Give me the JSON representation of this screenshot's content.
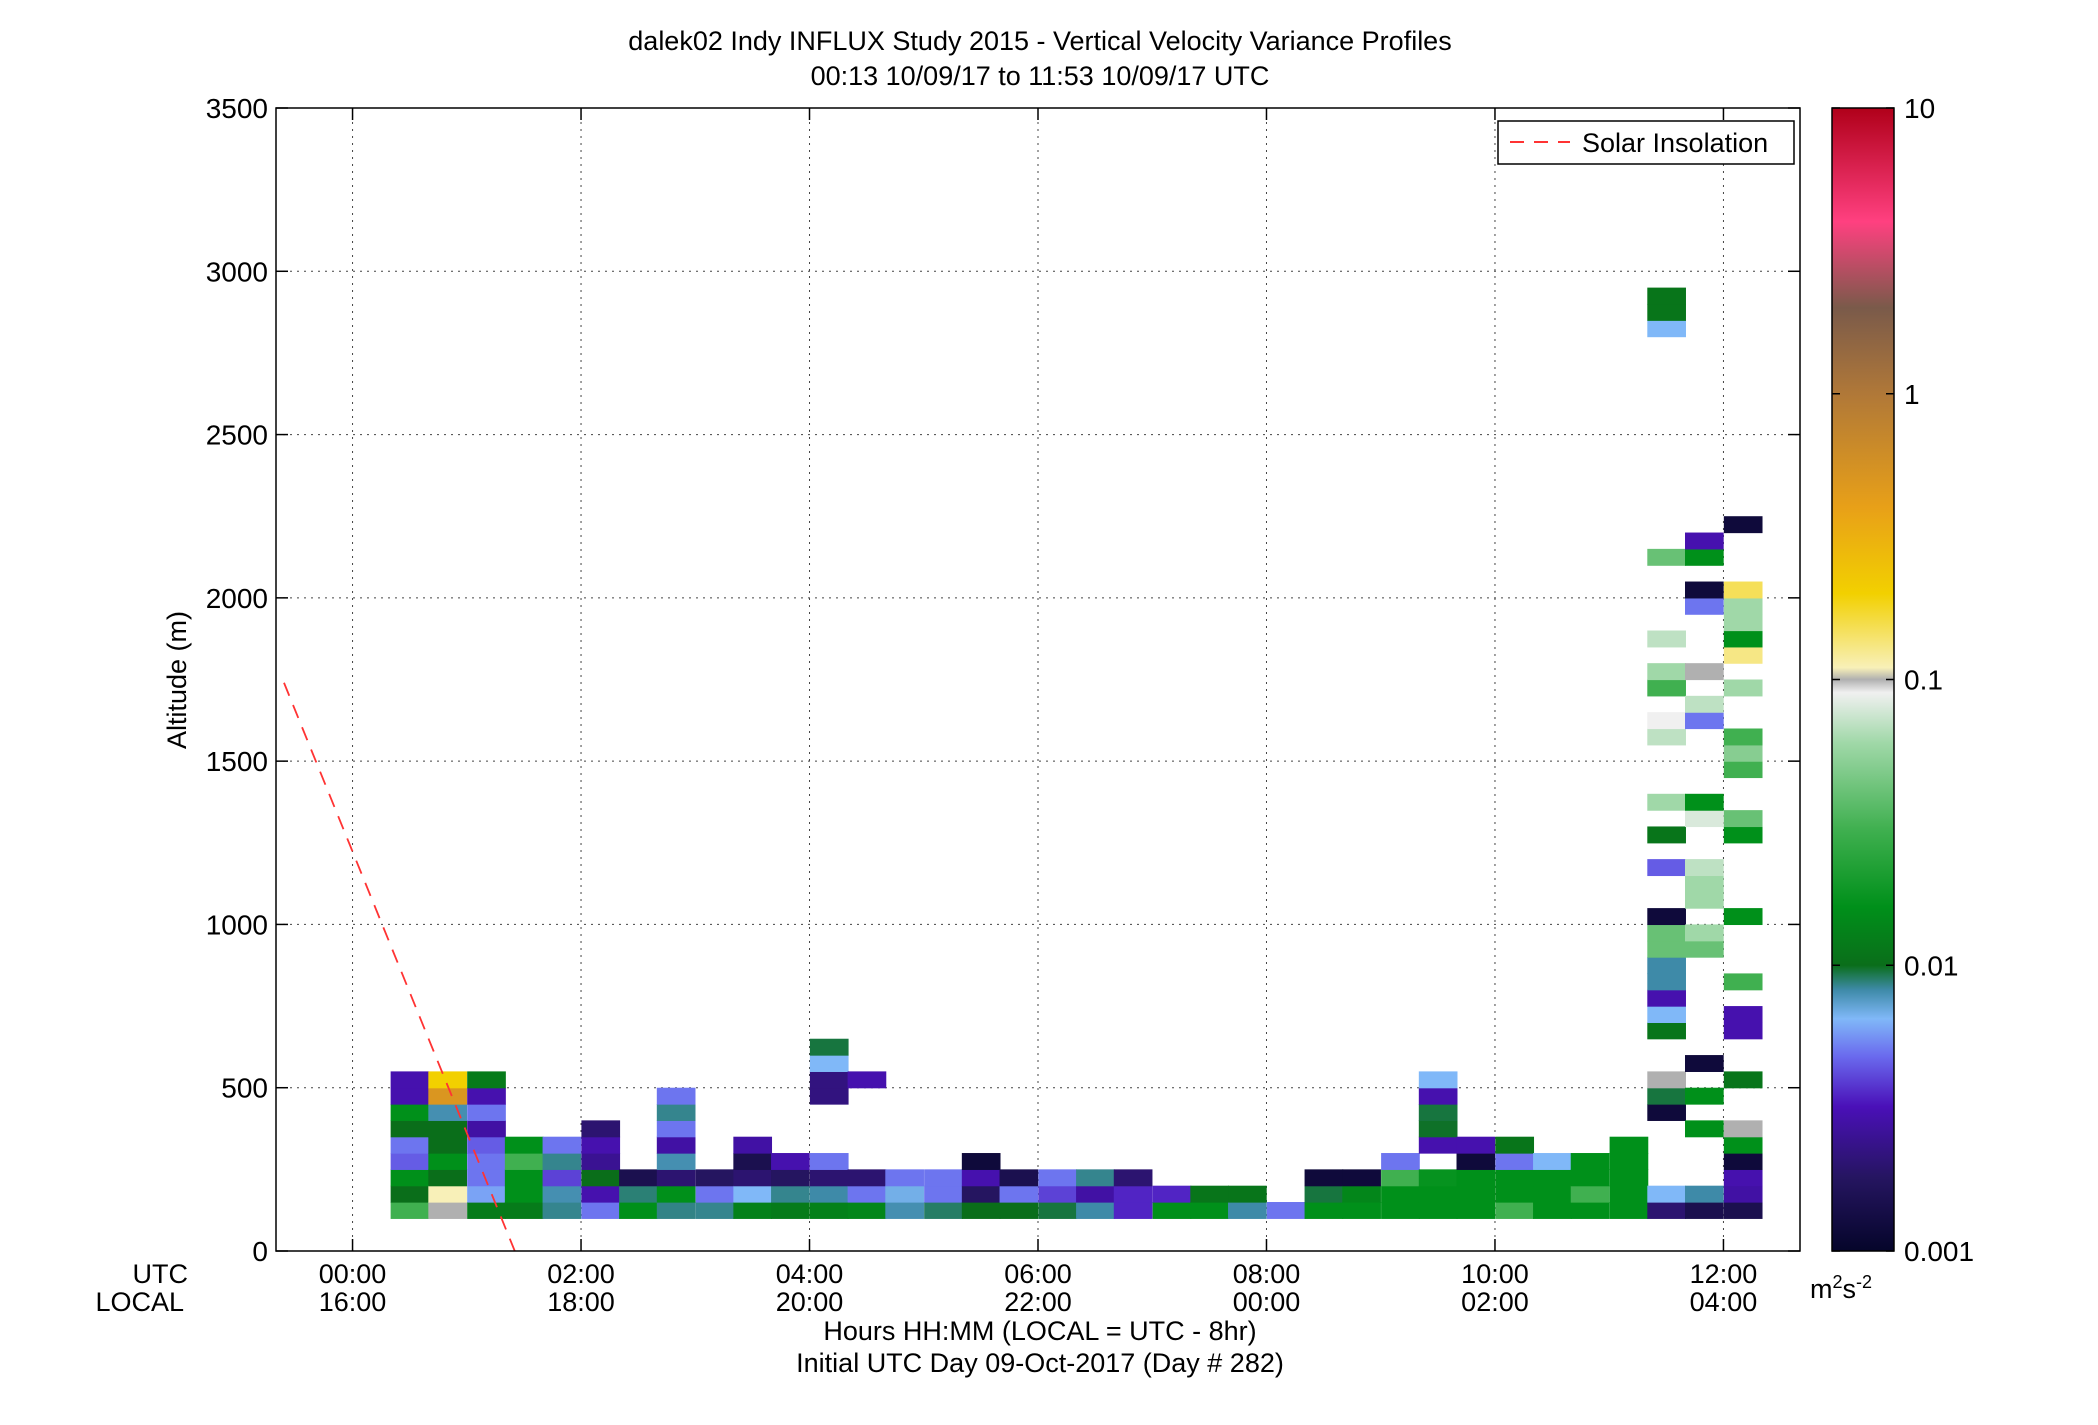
{
  "chart_data": {
    "type": "heatmap",
    "title": "dalek02 Indy INFLUX Study 2015 - Vertical Velocity Variance Profiles",
    "subtitle": "00:13 10/09/17 to 11:53 10/09/17  UTC",
    "ylabel": "Altitude (m)",
    "xlabel": "Hours HH:MM  (LOCAL = UTC - 8hr)",
    "xlabel2": "Initial UTC Day 09-Oct-2017 (Day # 282)",
    "row_label_utc": "UTC",
    "row_label_local": "LOCAL",
    "x_axis": {
      "unit": "hours UTC",
      "range": [
        -0.67,
        12.67
      ]
    },
    "y_axis": {
      "unit": "m",
      "range": [
        0,
        3500
      ]
    },
    "x_ticks": [
      {
        "hour": 0,
        "utc": "00:00",
        "local": "16:00"
      },
      {
        "hour": 2,
        "utc": "02:00",
        "local": "18:00"
      },
      {
        "hour": 4,
        "utc": "04:00",
        "local": "20:00"
      },
      {
        "hour": 6,
        "utc": "06:00",
        "local": "22:00"
      },
      {
        "hour": 8,
        "utc": "08:00",
        "local": "00:00"
      },
      {
        "hour": 10,
        "utc": "10:00",
        "local": "02:00"
      },
      {
        "hour": 12,
        "utc": "12:00",
        "local": "04:00"
      }
    ],
    "y_ticks": [
      0,
      500,
      1000,
      1500,
      2000,
      2500,
      3000,
      3500
    ],
    "y_tick_labels": [
      "0",
      "500",
      "1000",
      "1500",
      "2000",
      "2500",
      "3000",
      "3500"
    ],
    "grid": true,
    "legend": {
      "position": "top-right",
      "entries": [
        {
          "label": "Solar Insolation",
          "color": "#ff3333",
          "style": "dashed"
        }
      ]
    },
    "solar_insolation_line": {
      "points": [
        {
          "hour": -0.6,
          "altitude": 1740
        },
        {
          "hour": 1.42,
          "altitude": 0
        }
      ]
    },
    "colorbar": {
      "scale": "log",
      "range": [
        0.001,
        10
      ],
      "tick_values": [
        0.001,
        0.01,
        0.1,
        1,
        10
      ],
      "tick_labels": [
        "0.001",
        "0.01",
        "0.1",
        "1",
        "10"
      ],
      "unit_label": "m",
      "unit_sup1": "2",
      "unit_mid": "s",
      "unit_sup2": "-2",
      "color_stops": [
        {
          "v": 0.001,
          "color": "#05052a"
        },
        {
          "v": 0.0018,
          "color": "#251560"
        },
        {
          "v": 0.0032,
          "color": "#4a10b8"
        },
        {
          "v": 0.0048,
          "color": "#6a6aee"
        },
        {
          "v": 0.0065,
          "color": "#80b8f8"
        },
        {
          "v": 0.0082,
          "color": "#3e8aa8"
        },
        {
          "v": 0.01,
          "color": "#0a6e1a"
        },
        {
          "v": 0.016,
          "color": "#00901a"
        },
        {
          "v": 0.03,
          "color": "#40b050"
        },
        {
          "v": 0.06,
          "color": "#a0d8a8"
        },
        {
          "v": 0.09,
          "color": "#f0f0f0"
        },
        {
          "v": 0.1,
          "color": "#b0b0b0"
        },
        {
          "v": 0.11,
          "color": "#f8f0b8"
        },
        {
          "v": 0.2,
          "color": "#f2d000"
        },
        {
          "v": 0.4,
          "color": "#e8a018"
        },
        {
          "v": 1,
          "color": "#b07838"
        },
        {
          "v": 2,
          "color": "#7a5a4a"
        },
        {
          "v": 4,
          "color": "#ff4080"
        },
        {
          "v": 10,
          "color": "#b0001a"
        }
      ]
    },
    "bin_hours": 0.3333,
    "bin_altitude_m": 50,
    "profiles": [
      {
        "hour": 0.5,
        "cells": [
          [
            125,
            0.03
          ],
          [
            175,
            0.01
          ],
          [
            225,
            0.016
          ],
          [
            275,
            0.0045
          ],
          [
            325,
            0.005
          ],
          [
            375,
            0.01
          ],
          [
            425,
            0.016
          ],
          [
            475,
            0.003
          ],
          [
            525,
            0.003
          ]
        ]
      },
      {
        "hour": 0.83,
        "cells": [
          [
            125,
            0.1
          ],
          [
            175,
            0.11
          ],
          [
            225,
            0.01
          ],
          [
            275,
            0.016
          ],
          [
            325,
            0.01
          ],
          [
            375,
            0.01
          ],
          [
            425,
            0.008
          ],
          [
            475,
            0.5
          ],
          [
            525,
            0.2
          ]
        ]
      },
      {
        "hour": 1.17,
        "cells": [
          [
            125,
            0.012
          ],
          [
            175,
            0.006
          ],
          [
            225,
            0.005
          ],
          [
            275,
            0.005
          ],
          [
            325,
            0.0045
          ],
          [
            375,
            0.0028
          ],
          [
            425,
            0.005
          ],
          [
            475,
            0.003
          ],
          [
            525,
            0.012
          ]
        ]
      },
      {
        "hour": 1.5,
        "cells": [
          [
            125,
            0.012
          ],
          [
            175,
            0.016
          ],
          [
            225,
            0.016
          ],
          [
            275,
            0.03
          ],
          [
            325,
            0.016
          ]
        ]
      },
      {
        "hour": 1.83,
        "cells": [
          [
            125,
            0.0085
          ],
          [
            175,
            0.008
          ],
          [
            225,
            0.004
          ],
          [
            275,
            0.0085
          ],
          [
            325,
            0.005
          ]
        ]
      },
      {
        "hour": 2.17,
        "cells": [
          [
            125,
            0.005
          ],
          [
            175,
            0.003
          ],
          [
            225,
            0.01
          ],
          [
            275,
            0.0025
          ],
          [
            325,
            0.003
          ],
          [
            375,
            0.002
          ]
        ]
      },
      {
        "hour": 2.5,
        "cells": [
          [
            125,
            0.016
          ],
          [
            175,
            0.0088
          ],
          [
            225,
            0.0015
          ]
        ]
      },
      {
        "hour": 2.83,
        "cells": [
          [
            125,
            0.0086
          ],
          [
            175,
            0.016
          ],
          [
            225,
            0.002
          ],
          [
            275,
            0.008
          ],
          [
            325,
            0.0028
          ],
          [
            375,
            0.005
          ],
          [
            425,
            0.0085
          ],
          [
            475,
            0.005
          ]
        ]
      },
      {
        "hour": 3.17,
        "cells": [
          [
            125,
            0.0085
          ],
          [
            175,
            0.005
          ],
          [
            225,
            0.0018
          ]
        ]
      },
      {
        "hour": 3.5,
        "cells": [
          [
            125,
            0.013
          ],
          [
            175,
            0.0065
          ],
          [
            225,
            0.002
          ],
          [
            275,
            0.0015
          ],
          [
            325,
            0.0028
          ]
        ]
      },
      {
        "hour": 3.83,
        "cells": [
          [
            125,
            0.012
          ],
          [
            175,
            0.0085
          ],
          [
            225,
            0.0018
          ],
          [
            275,
            0.003
          ]
        ]
      },
      {
        "hour": 4.17,
        "cells": [
          [
            125,
            0.013
          ],
          [
            175,
            0.0082
          ],
          [
            225,
            0.002
          ],
          [
            275,
            0.005
          ],
          [
            475,
            0.0022
          ],
          [
            525,
            0.0022
          ],
          [
            575,
            0.0065
          ],
          [
            625,
            0.0095
          ]
        ]
      },
      {
        "hour": 4.5,
        "cells": [
          [
            125,
            0.014
          ],
          [
            175,
            0.005
          ],
          [
            225,
            0.002
          ],
          [
            525,
            0.003
          ]
        ]
      },
      {
        "hour": 4.83,
        "cells": [
          [
            125,
            0.008
          ],
          [
            175,
            0.0068
          ],
          [
            225,
            0.005
          ]
        ]
      },
      {
        "hour": 5.17,
        "cells": [
          [
            125,
            0.009
          ],
          [
            175,
            0.005
          ],
          [
            225,
            0.005
          ]
        ]
      },
      {
        "hour": 5.5,
        "cells": [
          [
            125,
            0.01
          ],
          [
            175,
            0.0018
          ],
          [
            225,
            0.003
          ],
          [
            275,
            0.0012
          ]
        ]
      },
      {
        "hour": 5.83,
        "cells": [
          [
            125,
            0.01
          ],
          [
            175,
            0.005
          ],
          [
            225,
            0.0015
          ]
        ]
      },
      {
        "hour": 6.17,
        "cells": [
          [
            125,
            0.0095
          ],
          [
            175,
            0.004
          ],
          [
            225,
            0.005
          ]
        ]
      },
      {
        "hour": 6.5,
        "cells": [
          [
            125,
            0.0082
          ],
          [
            175,
            0.0028
          ],
          [
            225,
            0.0085
          ]
        ]
      },
      {
        "hour": 6.83,
        "cells": [
          [
            125,
            0.0035
          ],
          [
            175,
            0.0035
          ],
          [
            225,
            0.002
          ]
        ]
      },
      {
        "hour": 7.17,
        "cells": [
          [
            125,
            0.016
          ],
          [
            175,
            0.0035
          ]
        ]
      },
      {
        "hour": 7.5,
        "cells": [
          [
            125,
            0.016
          ],
          [
            175,
            0.011
          ]
        ]
      },
      {
        "hour": 7.83,
        "cells": [
          [
            125,
            0.0082
          ],
          [
            175,
            0.011
          ]
        ]
      },
      {
        "hour": 8.17,
        "cells": [
          [
            125,
            0.005
          ]
        ]
      },
      {
        "hour": 8.5,
        "cells": [
          [
            125,
            0.016
          ],
          [
            175,
            0.0095
          ],
          [
            225,
            0.0012
          ]
        ]
      },
      {
        "hour": 8.83,
        "cells": [
          [
            125,
            0.016
          ],
          [
            175,
            0.014
          ],
          [
            225,
            0.0012
          ]
        ]
      },
      {
        "hour": 9.17,
        "cells": [
          [
            125,
            0.016
          ],
          [
            175,
            0.016
          ],
          [
            225,
            0.03
          ],
          [
            275,
            0.005
          ]
        ]
      },
      {
        "hour": 9.5,
        "cells": [
          [
            125,
            0.016
          ],
          [
            175,
            0.016
          ],
          [
            225,
            0.017
          ],
          [
            325,
            0.003
          ],
          [
            375,
            0.0098
          ],
          [
            425,
            0.0095
          ],
          [
            475,
            0.003
          ],
          [
            525,
            0.0065
          ]
        ]
      },
      {
        "hour": 9.83,
        "cells": [
          [
            125,
            0.016
          ],
          [
            175,
            0.016
          ],
          [
            225,
            0.016
          ],
          [
            275,
            0.0012
          ],
          [
            325,
            0.003
          ]
        ]
      },
      {
        "hour": 10.17,
        "cells": [
          [
            125,
            0.03
          ],
          [
            175,
            0.016
          ],
          [
            225,
            0.016
          ],
          [
            275,
            0.005
          ],
          [
            325,
            0.011
          ]
        ]
      },
      {
        "hour": 10.5,
        "cells": [
          [
            125,
            0.016
          ],
          [
            175,
            0.016
          ],
          [
            225,
            0.016
          ],
          [
            275,
            0.0065
          ]
        ]
      },
      {
        "hour": 10.83,
        "cells": [
          [
            125,
            0.016
          ],
          [
            175,
            0.03
          ],
          [
            225,
            0.016
          ],
          [
            275,
            0.016
          ]
        ]
      },
      {
        "hour": 11.17,
        "cells": [
          [
            125,
            0.016
          ],
          [
            175,
            0.016
          ],
          [
            225,
            0.016
          ],
          [
            275,
            0.016
          ],
          [
            325,
            0.016
          ]
        ]
      },
      {
        "hour": 11.5,
        "cells": [
          [
            125,
            0.002
          ],
          [
            175,
            0.0065
          ],
          [
            425,
            0.0012
          ],
          [
            475,
            0.0095
          ],
          [
            525,
            0.1
          ],
          [
            675,
            0.011
          ],
          [
            725,
            0.0065
          ],
          [
            775,
            0.003
          ],
          [
            825,
            0.0082
          ],
          [
            875,
            0.0082
          ],
          [
            925,
            0.04
          ],
          [
            975,
            0.04
          ],
          [
            1025,
            0.0012
          ],
          [
            1175,
            0.0045
          ],
          [
            1275,
            0.011
          ],
          [
            1375,
            0.06
          ],
          [
            1575,
            0.07
          ],
          [
            1625,
            0.09
          ],
          [
            1725,
            0.03
          ],
          [
            1775,
            0.06
          ],
          [
            1875,
            0.07
          ],
          [
            2125,
            0.04
          ],
          [
            2825,
            0.0065
          ],
          [
            2875,
            0.011
          ],
          [
            2925,
            0.011
          ]
        ]
      },
      {
        "hour": 11.83,
        "cells": [
          [
            125,
            0.0015
          ],
          [
            175,
            0.0082
          ],
          [
            375,
            0.016
          ],
          [
            475,
            0.016
          ],
          [
            575,
            0.0012
          ],
          [
            925,
            0.04
          ],
          [
            975,
            0.06
          ],
          [
            1075,
            0.06
          ],
          [
            1125,
            0.06
          ],
          [
            1175,
            0.07
          ],
          [
            1325,
            0.08
          ],
          [
            1375,
            0.016
          ],
          [
            1625,
            0.005
          ],
          [
            1675,
            0.07
          ],
          [
            1775,
            0.1
          ],
          [
            1975,
            0.005
          ],
          [
            2025,
            0.0012
          ],
          [
            2125,
            0.016
          ],
          [
            2175,
            0.003
          ]
        ]
      },
      {
        "hour": 12.17,
        "cells": [
          [
            125,
            0.0015
          ],
          [
            175,
            0.0028
          ],
          [
            225,
            0.003
          ],
          [
            275,
            0.0012
          ],
          [
            325,
            0.016
          ],
          [
            375,
            0.1
          ],
          [
            525,
            0.011
          ],
          [
            675,
            0.003
          ],
          [
            725,
            0.003
          ],
          [
            825,
            0.03
          ],
          [
            1025,
            0.016
          ],
          [
            1275,
            0.016
          ],
          [
            1325,
            0.04
          ],
          [
            1475,
            0.03
          ],
          [
            1525,
            0.05
          ],
          [
            1575,
            0.03
          ],
          [
            1725,
            0.06
          ],
          [
            1825,
            0.13
          ],
          [
            1875,
            0.016
          ],
          [
            1925,
            0.06
          ],
          [
            1975,
            0.06
          ],
          [
            2025,
            0.15
          ],
          [
            2225,
            0.0012
          ]
        ]
      }
    ]
  }
}
